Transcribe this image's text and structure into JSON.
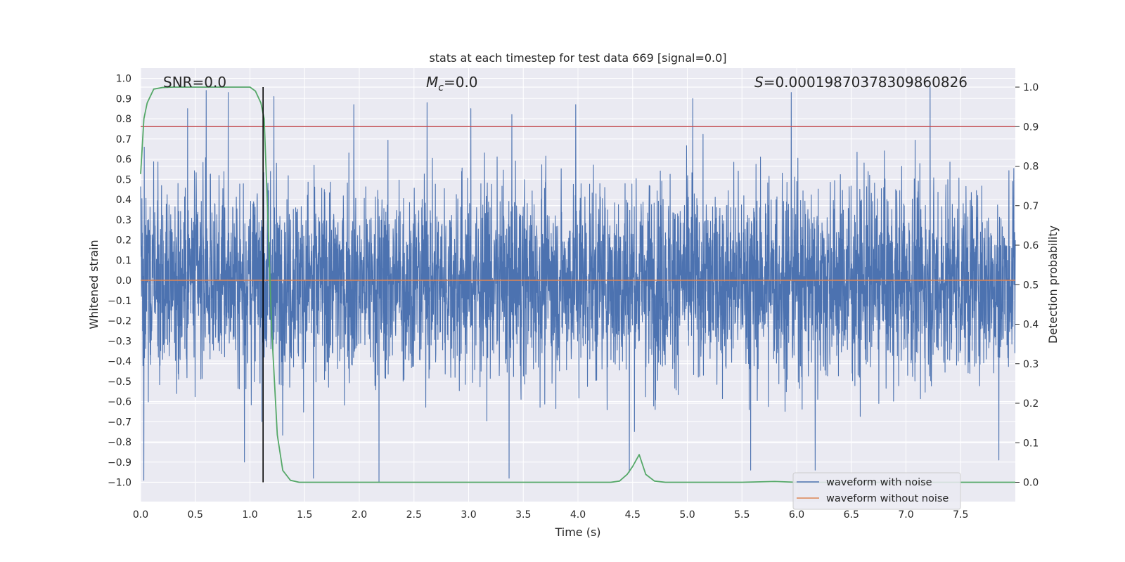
{
  "chart_data": {
    "type": "line",
    "title": "stats at each timestep for test data 669 [signal=0.0]",
    "xlabel": "Time (s)",
    "ylabel": "Whitened strain",
    "ylabel_right": "Detection probability",
    "xlim": [
      0.0,
      8.0
    ],
    "ylim": [
      -1.1,
      1.1
    ],
    "ylim_right": [
      -0.05,
      1.05
    ],
    "x_ticks": [
      "0.0",
      "0.5",
      "1.0",
      "1.5",
      "2.0",
      "2.5",
      "3.0",
      "3.5",
      "4.0",
      "4.5",
      "5.0",
      "5.5",
      "6.0",
      "6.5",
      "7.0",
      "7.5"
    ],
    "y_ticks": [
      "1.0",
      "0.9",
      "0.8",
      "0.7",
      "0.6",
      "0.5",
      "0.4",
      "0.3",
      "0.2",
      "0.1",
      "0.0",
      "-0.1",
      "-0.2",
      "-0.3",
      "-0.4",
      "-0.5",
      "-0.6",
      "-0.7",
      "-0.8",
      "-0.9",
      "-1.0"
    ],
    "y_ticks_right": [
      "1.0",
      "0.9",
      "0.8",
      "0.7",
      "0.6",
      "0.5",
      "0.4",
      "0.3",
      "0.2",
      "0.1",
      "0.0"
    ],
    "annotations": {
      "snr": "SNR=0.0",
      "mc_sym": "M",
      "mc_sub": "c",
      "mc_val": "=0.0",
      "s_sym": "S",
      "s_val": "=0.00019870378309860826"
    },
    "threshold": 0.9,
    "detection_time": 1.12,
    "series": [
      {
        "name": "waveform with noise",
        "color": "#4c72b0",
        "axis": "left",
        "description": "whitened noisy strain sampled densely over 0–8 s, amplitude mostly within ±0.5 with spikes near ±1.0",
        "envelope_p90": 0.55,
        "spikes": [
          [
            0.03,
            -0.99
          ],
          [
            0.43,
            0.85
          ],
          [
            0.6,
            0.94
          ],
          [
            0.8,
            0.93
          ],
          [
            0.95,
            -0.9
          ],
          [
            1.11,
            -0.7
          ],
          [
            1.22,
            0.91
          ],
          [
            1.58,
            -0.98
          ],
          [
            1.95,
            0.87
          ],
          [
            2.18,
            -1.0
          ],
          [
            2.62,
            0.88
          ],
          [
            3.02,
            0.85
          ],
          [
            3.37,
            -0.98
          ],
          [
            3.98,
            0.87
          ],
          [
            4.47,
            -0.95
          ],
          [
            5.05,
            0.9
          ],
          [
            5.58,
            -0.94
          ],
          [
            5.95,
            0.93
          ],
          [
            6.17,
            -0.94
          ],
          [
            7.22,
            0.96
          ],
          [
            7.85,
            -0.89
          ]
        ]
      },
      {
        "name": "waveform without noise",
        "color": "#dd8452",
        "axis": "left",
        "description": "clean waveform, zero for signal=0.0",
        "x": [
          0.0,
          8.0
        ],
        "y": [
          0.0,
          0.0
        ]
      },
      {
        "name": "detection probability",
        "color": "#55a868",
        "axis": "right",
        "in_legend": false,
        "x": [
          0.0,
          0.03,
          0.06,
          0.12,
          0.2,
          0.3,
          0.5,
          0.7,
          0.9,
          1.0,
          1.05,
          1.1,
          1.13,
          1.16,
          1.2,
          1.25,
          1.3,
          1.37,
          1.45,
          1.6,
          2.0,
          3.0,
          4.0,
          4.3,
          4.38,
          4.45,
          4.5,
          4.56,
          4.62,
          4.7,
          4.8,
          5.0,
          5.5,
          5.8,
          6.0,
          6.2,
          7.0,
          8.0
        ],
        "y": [
          0.78,
          0.92,
          0.96,
          0.995,
          0.999,
          1.0,
          1.0,
          1.0,
          1.0,
          1.0,
          0.99,
          0.96,
          0.92,
          0.7,
          0.38,
          0.12,
          0.03,
          0.005,
          0.0,
          0.0,
          0.0,
          0.0,
          0.0,
          0.0,
          0.003,
          0.02,
          0.04,
          0.07,
          0.02,
          0.003,
          0.0,
          0.0,
          0.0,
          0.002,
          0.0,
          0.0,
          0.0,
          0.0
        ]
      }
    ],
    "legend": {
      "placement": "lower-right",
      "entries": [
        {
          "label": "waveform with noise",
          "color": "#4c72b0"
        },
        {
          "label": "waveform without noise",
          "color": "#dd8452"
        }
      ]
    },
    "colors": {
      "background": "#eaeaf2",
      "grid": "#ffffff",
      "threshold_line": "#c44e52",
      "detection_line": "#000000"
    }
  }
}
